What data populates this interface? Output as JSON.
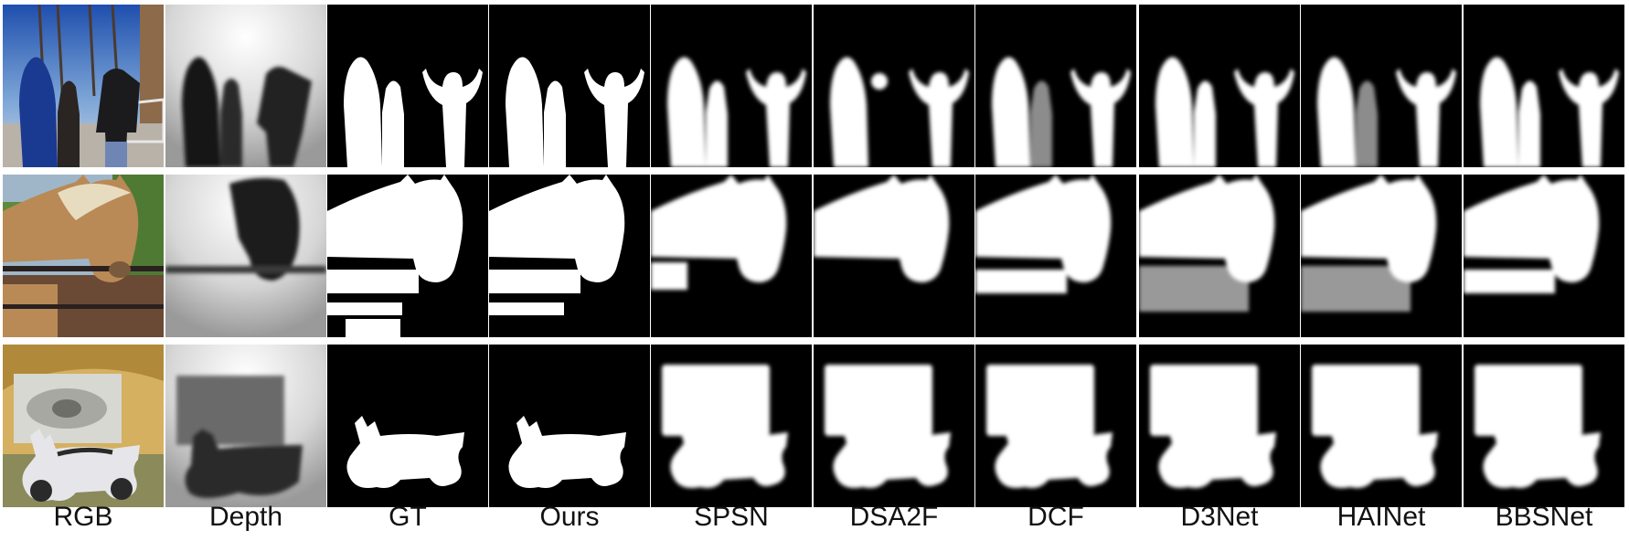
{
  "figure": {
    "column_labels": [
      "RGB",
      "Depth",
      "GT",
      "Ours",
      "SPSN",
      "DSA2F",
      "DCF",
      "D3Net",
      "HAINet",
      "BBSNet"
    ],
    "rows": [
      {
        "scene": "people"
      },
      {
        "scene": "horse"
      },
      {
        "scene": "motorcycle"
      }
    ]
  }
}
